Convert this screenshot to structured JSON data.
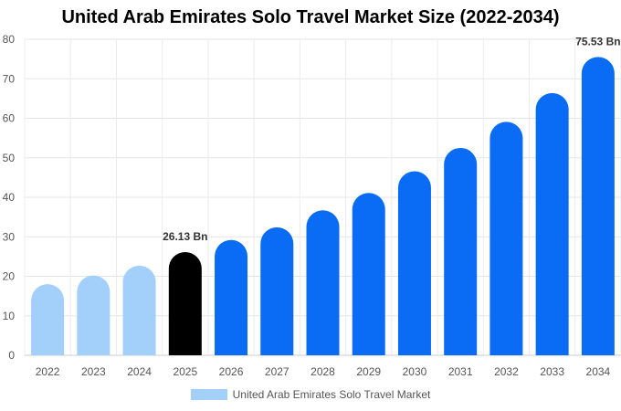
{
  "chart_data": {
    "type": "bar",
    "title": "United Arab Emirates Solo Travel Market Size (2022-2034)",
    "xlabel": "",
    "ylabel": "",
    "categories": [
      "2022",
      "2023",
      "2024",
      "2025",
      "2026",
      "2027",
      "2028",
      "2029",
      "2030",
      "2031",
      "2032",
      "2033",
      "2034"
    ],
    "series": [
      {
        "name": "United Arab Emirates Solo Travel Market",
        "values": [
          18.0,
          20.2,
          22.7,
          26.13,
          29.2,
          32.4,
          36.7,
          41.1,
          46.6,
          52.5,
          59.1,
          66.4,
          75.53
        ]
      }
    ],
    "ylim": [
      0,
      80
    ],
    "yticks": [
      0,
      10,
      20,
      30,
      40,
      50,
      60,
      70,
      80
    ],
    "data_labels": [
      {
        "index": 3,
        "text": "26.13 Bn"
      },
      {
        "index": 12,
        "text": "75.53 Bn"
      }
    ],
    "colors": {
      "historical": "#a3cffb",
      "current": "#000000",
      "forecast": "#0a6cf5",
      "legend": "#a3cffb"
    },
    "grid": true,
    "legend_position": "bottom"
  }
}
